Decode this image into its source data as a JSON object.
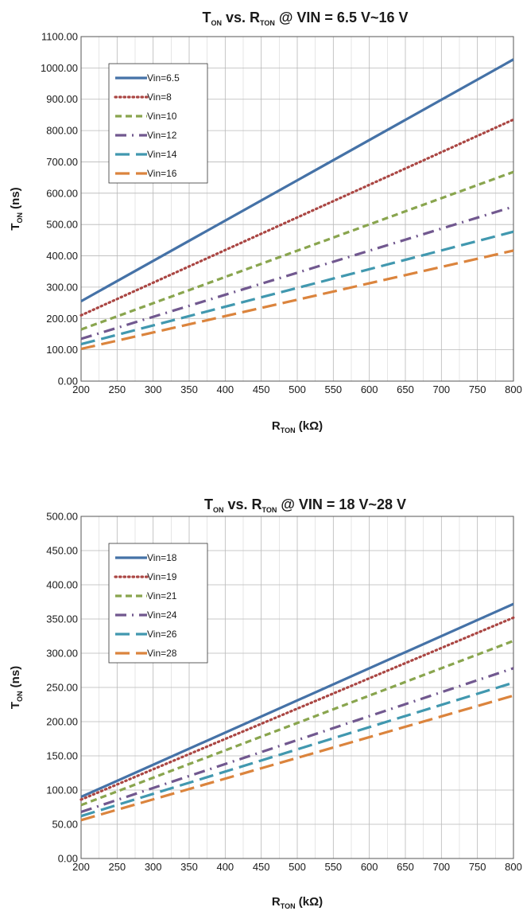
{
  "chart_data": [
    {
      "type": "line",
      "title": {
        "main": "T",
        "main_sub": "ON",
        "mid": " vs. R",
        "mid_sub": "TON",
        "rest": " @ VIN = 6.5 V~16 V"
      },
      "xlabel": {
        "main": "R",
        "sub": "TON",
        "rest": " (kΩ)"
      },
      "ylabel": {
        "main": "T",
        "sub": "ON",
        "rest": " (ns)"
      },
      "xlim": [
        200,
        800
      ],
      "ylim": [
        0,
        1100
      ],
      "xticks": [
        200,
        250,
        300,
        350,
        400,
        450,
        500,
        550,
        600,
        650,
        700,
        750,
        800
      ],
      "yticks": [
        0,
        100,
        200,
        300,
        400,
        500,
        600,
        700,
        800,
        900,
        1000,
        1100
      ],
      "ytick_labels": [
        "0.00",
        "100.00",
        "200.00",
        "300.00",
        "400.00",
        "500.00",
        "600.00",
        "700.00",
        "800.00",
        "900.00",
        "1000.00",
        "1100.00"
      ],
      "grid": true,
      "legend_position": "top-left",
      "x": [
        200,
        800
      ],
      "series": [
        {
          "name": "Vin=6.5",
          "values": [
            255,
            1027
          ],
          "color": "#4572a7",
          "dash": "solid"
        },
        {
          "name": "Vin=8",
          "values": [
            210,
            835
          ],
          "color": "#aa4643",
          "dash": "dotted"
        },
        {
          "name": "Vin=10",
          "values": [
            165,
            668
          ],
          "color": "#89a54e",
          "dash": "dashed"
        },
        {
          "name": "Vin=12",
          "values": [
            135,
            557
          ],
          "color": "#71588f",
          "dash": "dash-dot"
        },
        {
          "name": "Vin=14",
          "values": [
            118,
            477
          ],
          "color": "#4198af",
          "dash": "long-dash"
        },
        {
          "name": "Vin=16",
          "values": [
            103,
            417
          ],
          "color": "#db843d",
          "dash": "long-dash"
        }
      ]
    },
    {
      "type": "line",
      "title": {
        "main": "T",
        "main_sub": "ON",
        "mid": " vs. R",
        "mid_sub": "TON",
        "rest": " @ VIN = 18 V~28 V"
      },
      "xlabel": {
        "main": "R",
        "sub": "TON",
        "rest": " (kΩ)"
      },
      "ylabel": {
        "main": "T",
        "sub": "ON",
        "rest": " (ns)"
      },
      "xlim": [
        200,
        800
      ],
      "ylim": [
        0,
        500
      ],
      "xticks": [
        200,
        250,
        300,
        350,
        400,
        450,
        500,
        550,
        600,
        650,
        700,
        750,
        800
      ],
      "yticks": [
        0,
        50,
        100,
        150,
        200,
        250,
        300,
        350,
        400,
        450,
        500
      ],
      "ytick_labels": [
        "0.00",
        "50.00",
        "100.00",
        "150.00",
        "200.00",
        "250.00",
        "300.00",
        "350.00",
        "400.00",
        "450.00",
        "500.00"
      ],
      "grid": true,
      "legend_position": "top-left",
      "x": [
        200,
        800
      ],
      "series": [
        {
          "name": "Vin=18",
          "values": [
            90,
            372
          ],
          "color": "#4572a7",
          "dash": "solid"
        },
        {
          "name": "Vin=19",
          "values": [
            86,
            352
          ],
          "color": "#aa4643",
          "dash": "dotted"
        },
        {
          "name": "Vin=21",
          "values": [
            78,
            318
          ],
          "color": "#89a54e",
          "dash": "dashed"
        },
        {
          "name": "Vin=24",
          "values": [
            68,
            278
          ],
          "color": "#71588f",
          "dash": "dash-dot"
        },
        {
          "name": "Vin=26",
          "values": [
            62,
            257
          ],
          "color": "#4198af",
          "dash": "long-dash"
        },
        {
          "name": "Vin=28",
          "values": [
            56,
            238
          ],
          "color": "#db843d",
          "dash": "long-dash"
        }
      ]
    }
  ]
}
